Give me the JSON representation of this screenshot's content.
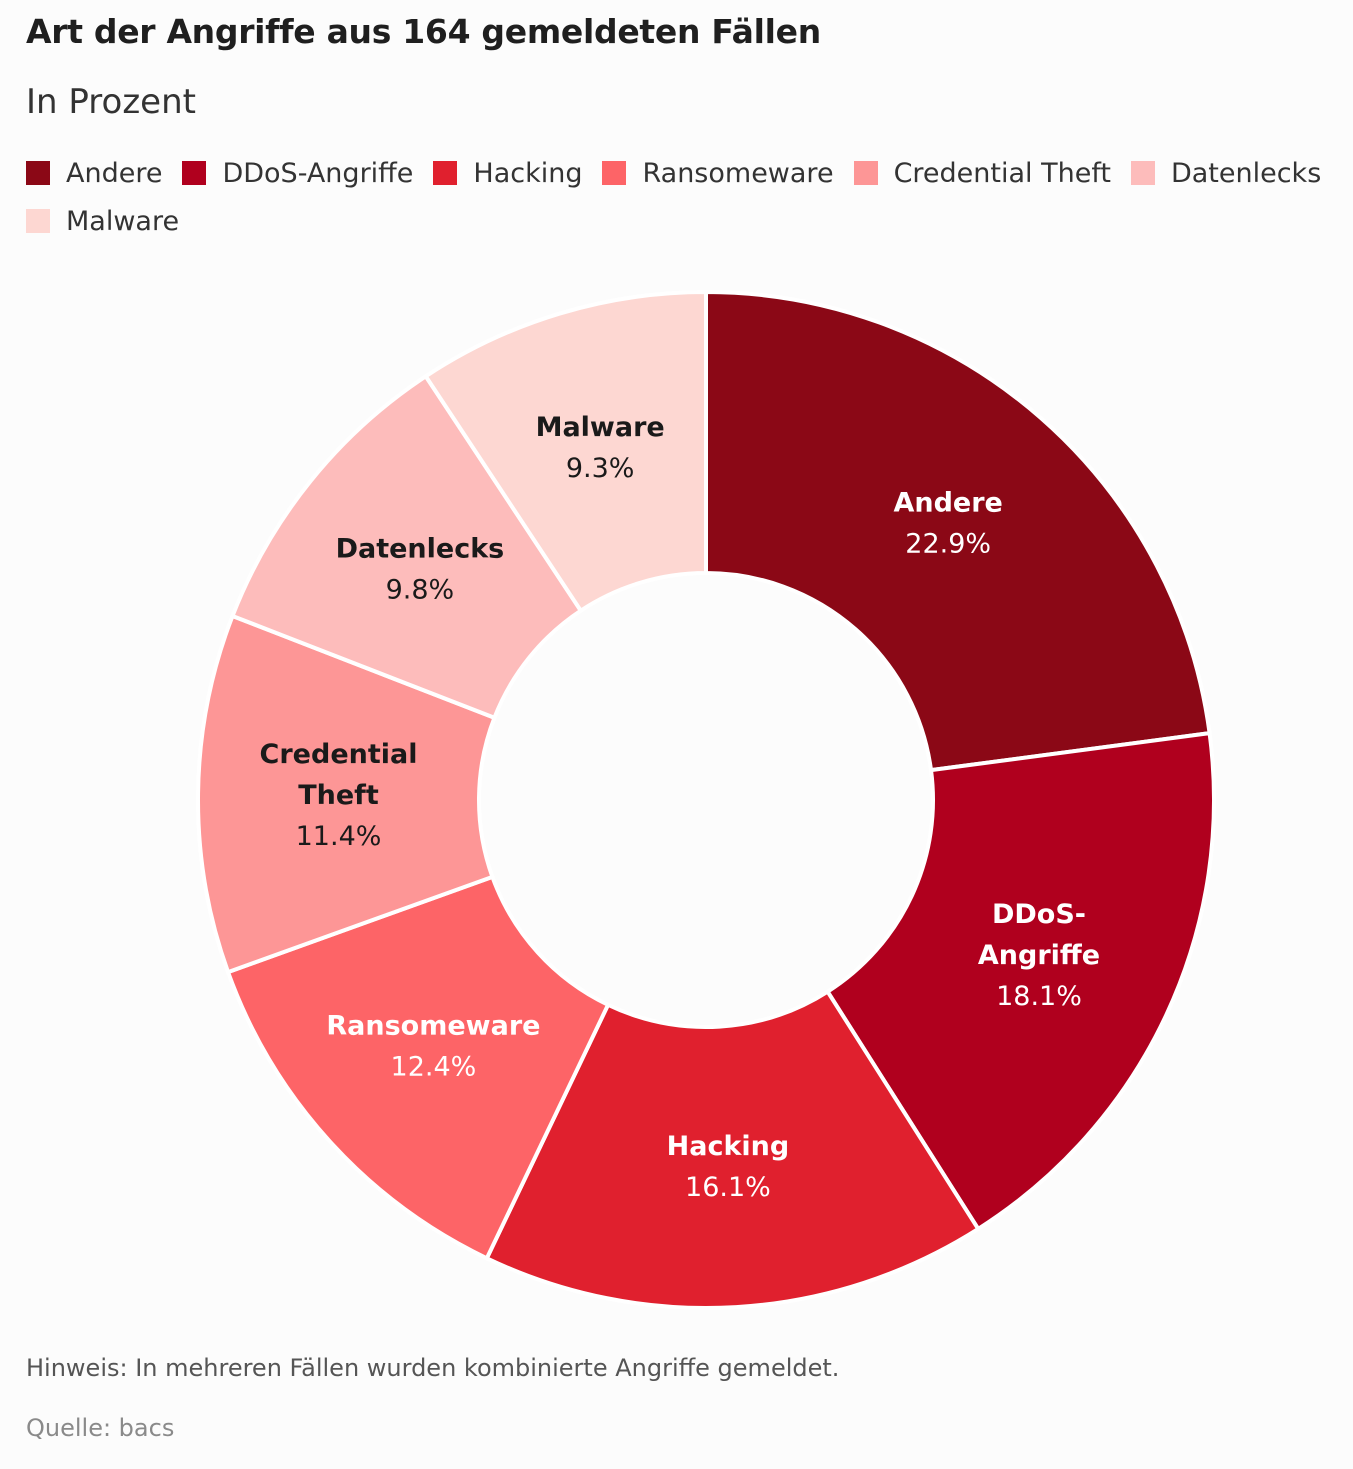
{
  "title": "Art der Angriffe aus 164 gemeldeten Fällen",
  "subtitle": "In Prozent",
  "note": "Hinweis: In mehreren Fällen wurden kombinierte Angriffe gemeldet.",
  "source": "Quelle: bacs",
  "chart_data": {
    "type": "pie",
    "donut": true,
    "title": "Art der Angriffe aus 164 gemeldeten Fällen",
    "subtitle": "In Prozent",
    "legend_position": "top",
    "unit": "%",
    "slices": [
      {
        "label": "Andere",
        "label_lines": [
          "Andere"
        ],
        "value": 22.9,
        "value_label": "22.9%",
        "color": "#8b0816",
        "text_color": "#ffffff"
      },
      {
        "label": "DDoS-Angriffe",
        "label_lines": [
          "DDoS-",
          "Angriffe"
        ],
        "value": 18.1,
        "value_label": "18.1%",
        "color": "#b0001e",
        "text_color": "#ffffff"
      },
      {
        "label": "Hacking",
        "label_lines": [
          "Hacking"
        ],
        "value": 16.1,
        "value_label": "16.1%",
        "color": "#e0202e",
        "text_color": "#ffffff"
      },
      {
        "label": "Ransomeware",
        "label_lines": [
          "Ransomeware"
        ],
        "value": 12.4,
        "value_label": "12.4%",
        "color": "#fd6467",
        "text_color": "#ffffff"
      },
      {
        "label": "Credential Theft",
        "label_lines": [
          "Credential",
          "Theft"
        ],
        "value": 11.4,
        "value_label": "11.4%",
        "color": "#fd9696",
        "text_color": "#1a1a1a"
      },
      {
        "label": "Datenlecks",
        "label_lines": [
          "Datenlecks"
        ],
        "value": 9.8,
        "value_label": "9.8%",
        "color": "#fdbcbb",
        "text_color": "#1a1a1a"
      },
      {
        "label": "Malware",
        "label_lines": [
          "Malware"
        ],
        "value": 9.3,
        "value_label": "9.3%",
        "color": "#fdd7d2",
        "text_color": "#1a1a1a"
      }
    ]
  }
}
